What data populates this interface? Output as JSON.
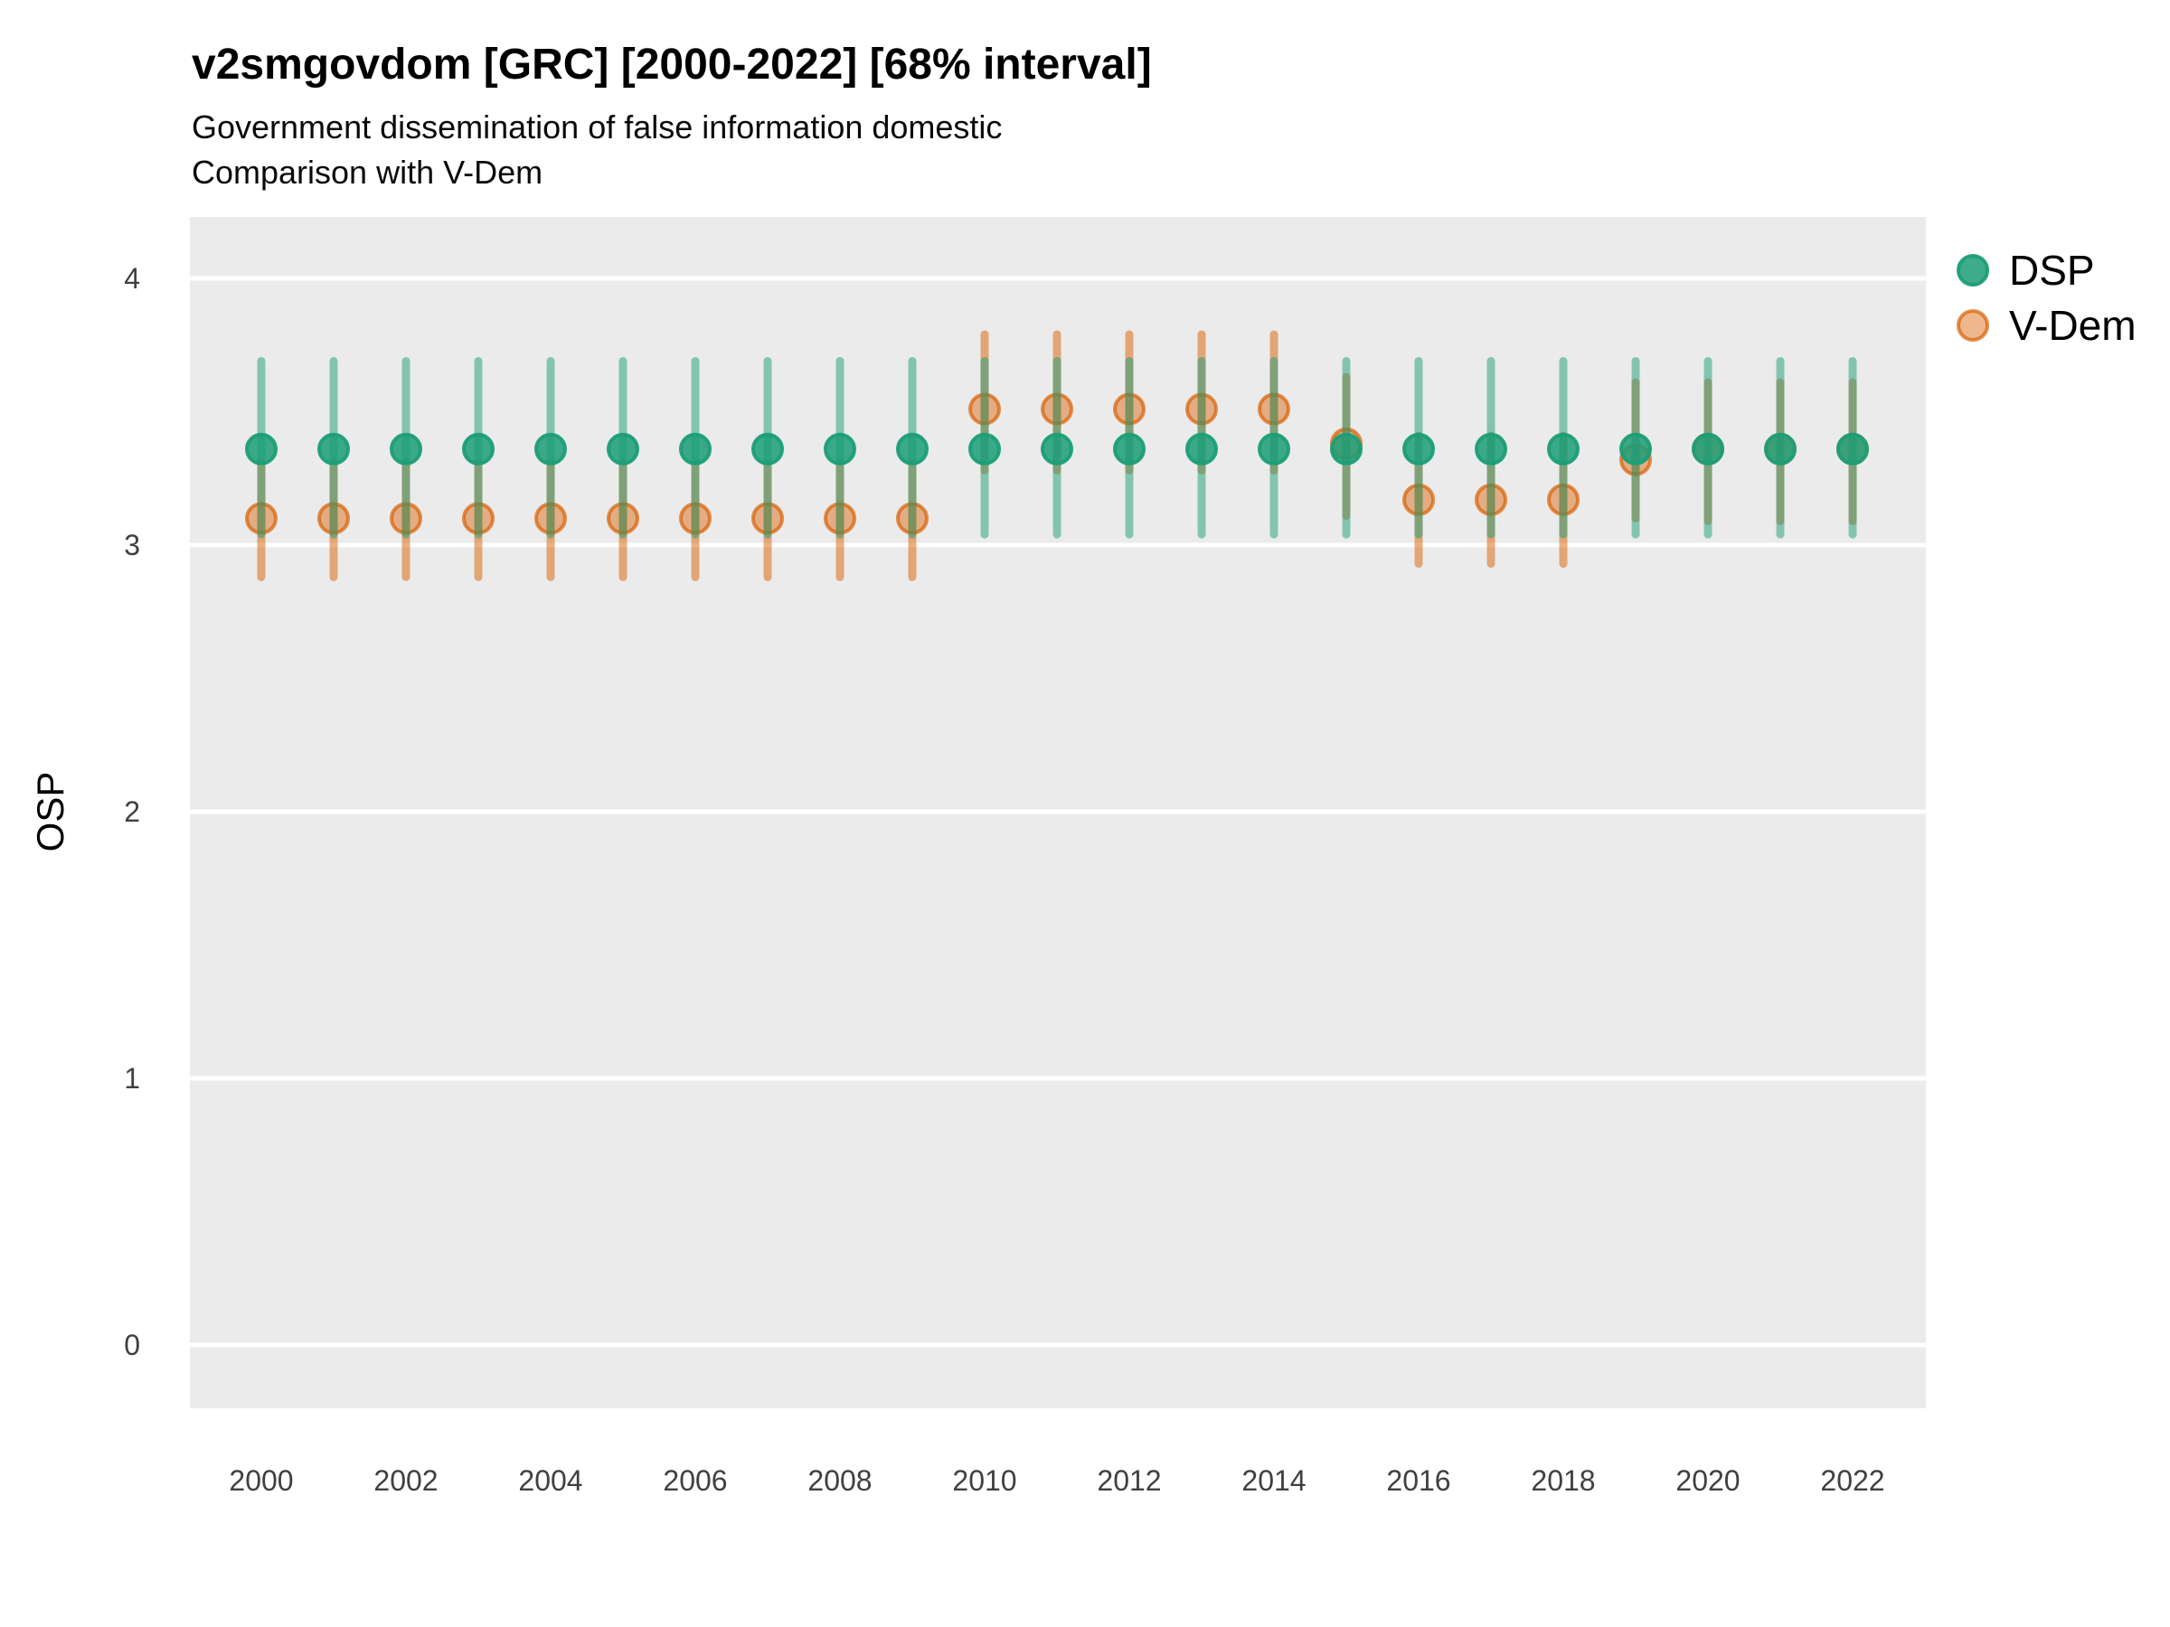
{
  "title": "v2smgovdom [GRC] [2000-2022] [68% interval]",
  "subtitle1": "Government dissemination of false information domestic",
  "subtitle2": "Comparison with V-Dem",
  "y_axis_label": "OSP",
  "legend": {
    "position": "right",
    "items": [
      {
        "label": "DSP",
        "color": "#1B9E77"
      },
      {
        "label": "V-Dem",
        "color": "#D95F02"
      }
    ]
  },
  "panel": {
    "bg": "#EBEBEB",
    "gridline_color": "#FFFFFF"
  },
  "chart_data": {
    "type": "pointrange",
    "title": "v2smgovdom [GRC] [2000-2022] [68% interval]",
    "subtitle": "Government dissemination of false information domestic / Comparison with V-Dem",
    "interval": "68%",
    "xlabel": "",
    "ylabel": "OSP",
    "ylim": [
      -0.24,
      4.23
    ],
    "grid": "major-horizontal",
    "legend_position": "right",
    "y_ticks": [
      "4",
      "3",
      "2",
      "1",
      "0"
    ],
    "y_tick_values": [
      4,
      3,
      2,
      1,
      0
    ],
    "x_ticks": [
      "2000",
      "2002",
      "2004",
      "2006",
      "2008",
      "2010",
      "2012",
      "2014",
      "2016",
      "2018",
      "2020",
      "2022"
    ],
    "x_tick_values": [
      2000,
      2002,
      2004,
      2006,
      2008,
      2010,
      2012,
      2014,
      2016,
      2018,
      2020,
      2022
    ],
    "series": [
      {
        "name": "DSP",
        "color": "#1B9E77",
        "points": [
          {
            "year": 2000,
            "est": 3.36,
            "lo": 3.04,
            "hi": 3.69
          },
          {
            "year": 2001,
            "est": 3.36,
            "lo": 3.04,
            "hi": 3.69
          },
          {
            "year": 2002,
            "est": 3.36,
            "lo": 3.04,
            "hi": 3.69
          },
          {
            "year": 2003,
            "est": 3.36,
            "lo": 3.04,
            "hi": 3.69
          },
          {
            "year": 2004,
            "est": 3.36,
            "lo": 3.04,
            "hi": 3.69
          },
          {
            "year": 2005,
            "est": 3.36,
            "lo": 3.04,
            "hi": 3.69
          },
          {
            "year": 2006,
            "est": 3.36,
            "lo": 3.04,
            "hi": 3.69
          },
          {
            "year": 2007,
            "est": 3.36,
            "lo": 3.04,
            "hi": 3.69
          },
          {
            "year": 2008,
            "est": 3.36,
            "lo": 3.04,
            "hi": 3.69
          },
          {
            "year": 2009,
            "est": 3.36,
            "lo": 3.04,
            "hi": 3.69
          },
          {
            "year": 2010,
            "est": 3.36,
            "lo": 3.04,
            "hi": 3.69
          },
          {
            "year": 2011,
            "est": 3.36,
            "lo": 3.04,
            "hi": 3.69
          },
          {
            "year": 2012,
            "est": 3.36,
            "lo": 3.04,
            "hi": 3.69
          },
          {
            "year": 2013,
            "est": 3.36,
            "lo": 3.04,
            "hi": 3.69
          },
          {
            "year": 2014,
            "est": 3.36,
            "lo": 3.04,
            "hi": 3.69
          },
          {
            "year": 2015,
            "est": 3.36,
            "lo": 3.04,
            "hi": 3.69
          },
          {
            "year": 2016,
            "est": 3.36,
            "lo": 3.04,
            "hi": 3.69
          },
          {
            "year": 2017,
            "est": 3.36,
            "lo": 3.04,
            "hi": 3.69
          },
          {
            "year": 2018,
            "est": 3.36,
            "lo": 3.04,
            "hi": 3.69
          },
          {
            "year": 2019,
            "est": 3.36,
            "lo": 3.04,
            "hi": 3.69
          },
          {
            "year": 2020,
            "est": 3.36,
            "lo": 3.04,
            "hi": 3.69
          },
          {
            "year": 2021,
            "est": 3.36,
            "lo": 3.04,
            "hi": 3.69
          },
          {
            "year": 2022,
            "est": 3.36,
            "lo": 3.04,
            "hi": 3.69
          }
        ]
      },
      {
        "name": "V-Dem",
        "color": "#D95F02",
        "points": [
          {
            "year": 2000,
            "est": 3.1,
            "lo": 2.88,
            "hi": 3.31
          },
          {
            "year": 2001,
            "est": 3.1,
            "lo": 2.88,
            "hi": 3.31
          },
          {
            "year": 2002,
            "est": 3.1,
            "lo": 2.88,
            "hi": 3.31
          },
          {
            "year": 2003,
            "est": 3.1,
            "lo": 2.88,
            "hi": 3.31
          },
          {
            "year": 2004,
            "est": 3.1,
            "lo": 2.88,
            "hi": 3.31
          },
          {
            "year": 2005,
            "est": 3.1,
            "lo": 2.88,
            "hi": 3.31
          },
          {
            "year": 2006,
            "est": 3.1,
            "lo": 2.88,
            "hi": 3.31
          },
          {
            "year": 2007,
            "est": 3.1,
            "lo": 2.88,
            "hi": 3.31
          },
          {
            "year": 2008,
            "est": 3.1,
            "lo": 2.88,
            "hi": 3.31
          },
          {
            "year": 2009,
            "est": 3.1,
            "lo": 2.88,
            "hi": 3.31
          },
          {
            "year": 2010,
            "est": 3.51,
            "lo": 3.28,
            "hi": 3.79
          },
          {
            "year": 2011,
            "est": 3.51,
            "lo": 3.28,
            "hi": 3.79
          },
          {
            "year": 2012,
            "est": 3.51,
            "lo": 3.28,
            "hi": 3.79
          },
          {
            "year": 2013,
            "est": 3.51,
            "lo": 3.28,
            "hi": 3.79
          },
          {
            "year": 2014,
            "est": 3.51,
            "lo": 3.28,
            "hi": 3.79
          },
          {
            "year": 2015,
            "est": 3.38,
            "lo": 3.11,
            "hi": 3.63
          },
          {
            "year": 2016,
            "est": 3.17,
            "lo": 2.93,
            "hi": 3.41
          },
          {
            "year": 2017,
            "est": 3.17,
            "lo": 2.93,
            "hi": 3.41
          },
          {
            "year": 2018,
            "est": 3.17,
            "lo": 2.93,
            "hi": 3.41
          },
          {
            "year": 2019,
            "est": 3.32,
            "lo": 3.1,
            "hi": 3.61
          },
          {
            "year": 2020,
            "est": 3.36,
            "lo": 3.09,
            "hi": 3.61
          },
          {
            "year": 2021,
            "est": 3.36,
            "lo": 3.09,
            "hi": 3.61
          },
          {
            "year": 2022,
            "est": 3.36,
            "lo": 3.09,
            "hi": 3.61
          }
        ]
      }
    ]
  }
}
